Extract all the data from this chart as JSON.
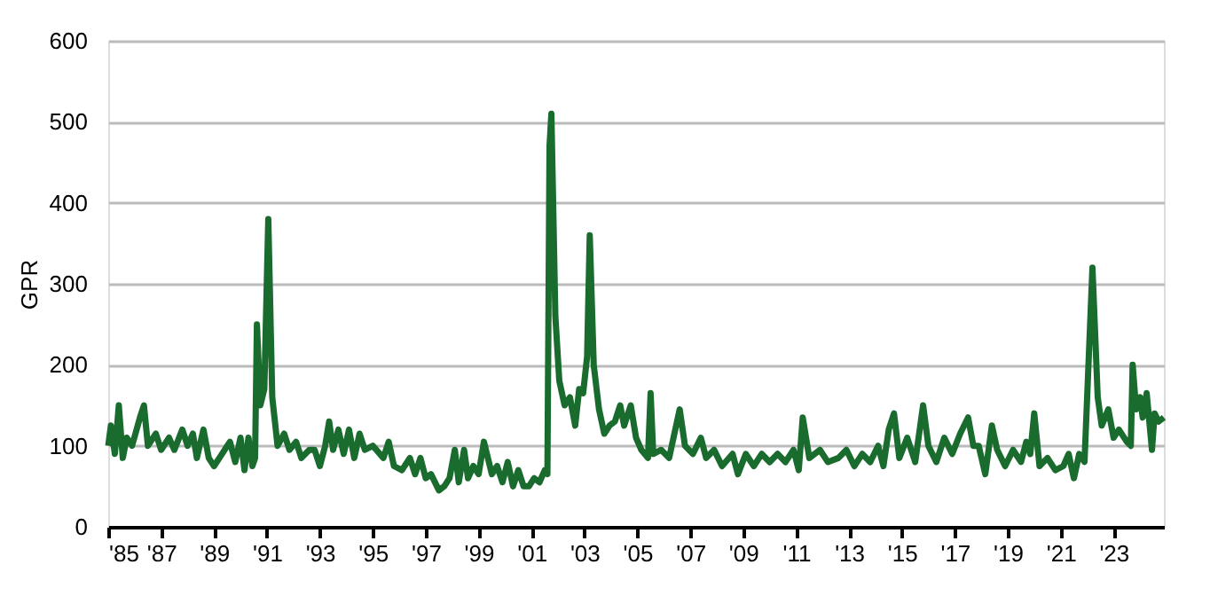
{
  "chart_data": {
    "type": "line",
    "ylabel": "GPR",
    "x": [
      1985.0,
      1985.1,
      1985.25,
      1985.4,
      1985.55,
      1985.7,
      1985.9,
      1986.2,
      1986.35,
      1986.5,
      1986.8,
      1987.0,
      1987.3,
      1987.5,
      1987.8,
      1988.0,
      1988.2,
      1988.35,
      1988.6,
      1988.8,
      1989.0,
      1989.3,
      1989.6,
      1989.8,
      1990.0,
      1990.15,
      1990.3,
      1990.45,
      1990.55,
      1990.62,
      1990.75,
      1990.9,
      1991.05,
      1991.2,
      1991.4,
      1991.65,
      1991.85,
      1992.1,
      1992.3,
      1992.6,
      1992.8,
      1993.0,
      1993.2,
      1993.35,
      1993.5,
      1993.7,
      1993.9,
      1994.1,
      1994.3,
      1994.5,
      1994.7,
      1995.0,
      1995.4,
      1995.6,
      1995.8,
      1996.1,
      1996.4,
      1996.6,
      1996.8,
      1997.0,
      1997.2,
      1997.5,
      1997.7,
      1997.9,
      1998.1,
      1998.25,
      1998.45,
      1998.6,
      1998.8,
      1999.0,
      1999.2,
      1999.5,
      1999.7,
      1999.9,
      2000.1,
      2000.3,
      2000.5,
      2000.7,
      2000.9,
      2001.1,
      2001.3,
      2001.5,
      2001.6,
      2001.68,
      2001.75,
      2001.9,
      2002.05,
      2002.25,
      2002.45,
      2002.65,
      2002.8,
      2002.95,
      2003.1,
      2003.2,
      2003.35,
      2003.55,
      2003.75,
      2003.95,
      2004.15,
      2004.35,
      2004.5,
      2004.75,
      2004.95,
      2005.15,
      2005.4,
      2005.5,
      2005.6,
      2005.9,
      2006.2,
      2006.6,
      2006.8,
      2007.1,
      2007.4,
      2007.6,
      2007.9,
      2008.2,
      2008.6,
      2008.8,
      2009.1,
      2009.4,
      2009.7,
      2010.0,
      2010.3,
      2010.6,
      2010.9,
      2011.1,
      2011.25,
      2011.5,
      2011.9,
      2012.2,
      2012.6,
      2012.9,
      2013.2,
      2013.5,
      2013.8,
      2014.1,
      2014.3,
      2014.5,
      2014.7,
      2014.9,
      2015.2,
      2015.5,
      2015.8,
      2016.0,
      2016.3,
      2016.6,
      2016.9,
      2017.2,
      2017.5,
      2017.7,
      2017.9,
      2018.15,
      2018.4,
      2018.6,
      2018.9,
      2019.2,
      2019.5,
      2019.7,
      2019.85,
      2020.0,
      2020.2,
      2020.5,
      2020.8,
      2021.1,
      2021.3,
      2021.5,
      2021.7,
      2021.9,
      2022.05,
      2022.2,
      2022.4,
      2022.55,
      2022.8,
      2023.0,
      2023.2,
      2023.5,
      2023.65,
      2023.72,
      2023.85,
      2024.0,
      2024.1,
      2024.25,
      2024.45,
      2024.55,
      2024.7,
      2024.9
    ],
    "series": [
      {
        "color": "#1a6b2e",
        "values": [
          100,
          125,
          90,
          150,
          85,
          110,
          100,
          135,
          150,
          100,
          115,
          95,
          110,
          95,
          120,
          100,
          115,
          85,
          120,
          85,
          75,
          90,
          105,
          80,
          110,
          70,
          110,
          75,
          85,
          250,
          150,
          170,
          380,
          160,
          100,
          115,
          95,
          105,
          85,
          95,
          95,
          75,
          100,
          130,
          95,
          120,
          90,
          120,
          85,
          115,
          95,
          100,
          85,
          105,
          75,
          70,
          85,
          65,
          85,
          60,
          65,
          45,
          50,
          60,
          95,
          55,
          95,
          60,
          75,
          65,
          105,
          65,
          75,
          55,
          80,
          50,
          70,
          50,
          50,
          60,
          55,
          70,
          65,
          470,
          510,
          260,
          180,
          150,
          160,
          125,
          170,
          165,
          210,
          360,
          200,
          145,
          115,
          125,
          130,
          150,
          125,
          150,
          110,
          95,
          85,
          165,
          90,
          95,
          85,
          145,
          100,
          90,
          110,
          85,
          95,
          75,
          90,
          65,
          90,
          75,
          90,
          80,
          90,
          80,
          95,
          70,
          135,
          85,
          95,
          80,
          85,
          95,
          75,
          90,
          80,
          100,
          75,
          120,
          140,
          85,
          110,
          80,
          150,
          100,
          80,
          110,
          90,
          115,
          135,
          100,
          100,
          65,
          125,
          95,
          75,
          95,
          80,
          105,
          90,
          140,
          75,
          85,
          70,
          75,
          90,
          60,
          90,
          80,
          200,
          320,
          160,
          125,
          145,
          110,
          120,
          105,
          100,
          200,
          145,
          160,
          135,
          165,
          95,
          140,
          130,
          135
        ]
      }
    ],
    "xlim": [
      1985,
      2024.9
    ],
    "xticks": [
      {
        "value": 1985,
        "label": "'85"
      },
      {
        "value": 1987,
        "label": "'87"
      },
      {
        "value": 1989,
        "label": "'89"
      },
      {
        "value": 1991,
        "label": "'91"
      },
      {
        "value": 1993,
        "label": "'93"
      },
      {
        "value": 1995,
        "label": "'95"
      },
      {
        "value": 1997,
        "label": "'97"
      },
      {
        "value": 1999,
        "label": "'99"
      },
      {
        "value": 2001,
        "label": "'01"
      },
      {
        "value": 2003,
        "label": "'03"
      },
      {
        "value": 2005,
        "label": "'05"
      },
      {
        "value": 2007,
        "label": "'07"
      },
      {
        "value": 2009,
        "label": "'09"
      },
      {
        "value": 2011,
        "label": "'11"
      },
      {
        "value": 2013,
        "label": "'13"
      },
      {
        "value": 2015,
        "label": "'15"
      },
      {
        "value": 2017,
        "label": "'17"
      },
      {
        "value": 2019,
        "label": "'19"
      },
      {
        "value": 2021,
        "label": "'21"
      },
      {
        "value": 2023,
        "label": "'23"
      }
    ],
    "ylim": [
      0,
      600
    ],
    "yticks": [
      0,
      100,
      200,
      300,
      400,
      500,
      600
    ],
    "grid": "y",
    "marker": "none",
    "line_style": "solid"
  }
}
